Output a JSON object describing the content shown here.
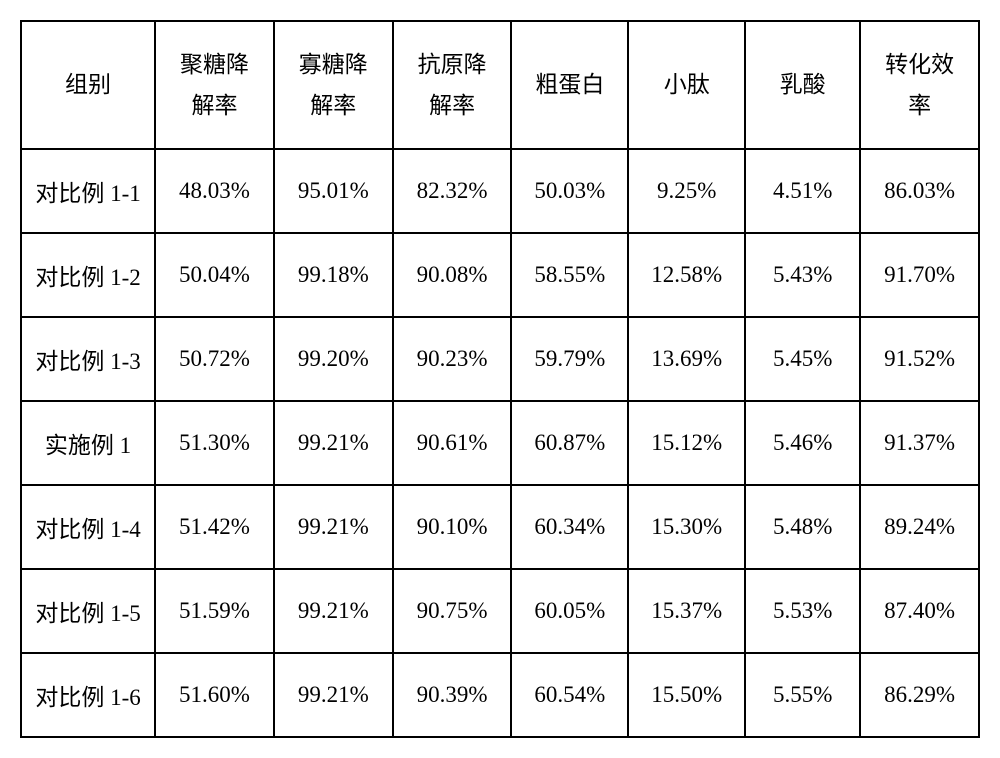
{
  "table": {
    "type": "table",
    "background_color": "#ffffff",
    "border_color": "#000000",
    "border_width": 2,
    "font_family": "SimSun",
    "header_fontsize": 23,
    "cell_fontsize": 23,
    "header_row_height": 128,
    "data_row_height": 84,
    "text_color": "#000000",
    "columns": [
      {
        "key": "group",
        "label": "组别",
        "width_pct": 14.0,
        "align": "center"
      },
      {
        "key": "poly",
        "label": "聚糖降解率",
        "width_pct": 12.4,
        "align": "center"
      },
      {
        "key": "oligo",
        "label": "寡糖降解率",
        "width_pct": 12.4,
        "align": "center"
      },
      {
        "key": "antigen",
        "label": "抗原降解率",
        "width_pct": 12.4,
        "align": "center"
      },
      {
        "key": "protein",
        "label": "粗蛋白",
        "width_pct": 12.2,
        "align": "center"
      },
      {
        "key": "peptide",
        "label": "小肽",
        "width_pct": 12.2,
        "align": "center"
      },
      {
        "key": "lactic",
        "label": "乳酸",
        "width_pct": 12.0,
        "align": "center"
      },
      {
        "key": "conv",
        "label": "转化效率",
        "width_pct": 12.4,
        "align": "center"
      }
    ],
    "header_labels": {
      "l0": "组别",
      "l1a": "聚糖降",
      "l1b": "解率",
      "l2a": "寡糖降",
      "l2b": "解率",
      "l3a": "抗原降",
      "l3b": "解率",
      "l4": "粗蛋白",
      "l5": "小肽",
      "l6": "乳酸",
      "l7a": "转化效",
      "l7b": "率"
    },
    "rows": [
      {
        "group": "对比例 1-1",
        "poly": "48.03%",
        "oligo": "95.01%",
        "antigen": "82.32%",
        "protein": "50.03%",
        "peptide": "9.25%",
        "lactic": "4.51%",
        "conv": "86.03%"
      },
      {
        "group": "对比例 1-2",
        "poly": "50.04%",
        "oligo": "99.18%",
        "antigen": "90.08%",
        "protein": "58.55%",
        "peptide": "12.58%",
        "lactic": "5.43%",
        "conv": "91.70%"
      },
      {
        "group": "对比例 1-3",
        "poly": "50.72%",
        "oligo": "99.20%",
        "antigen": "90.23%",
        "protein": "59.79%",
        "peptide": "13.69%",
        "lactic": "5.45%",
        "conv": "91.52%"
      },
      {
        "group": "实施例 1",
        "poly": "51.30%",
        "oligo": "99.21%",
        "antigen": "90.61%",
        "protein": "60.87%",
        "peptide": "15.12%",
        "lactic": "5.46%",
        "conv": "91.37%"
      },
      {
        "group": "对比例 1-4",
        "poly": "51.42%",
        "oligo": "99.21%",
        "antigen": "90.10%",
        "protein": "60.34%",
        "peptide": "15.30%",
        "lactic": "5.48%",
        "conv": "89.24%"
      },
      {
        "group": "对比例 1-5",
        "poly": "51.59%",
        "oligo": "99.21%",
        "antigen": "90.75%",
        "protein": "60.05%",
        "peptide": "15.37%",
        "lactic": "5.53%",
        "conv": "87.40%"
      },
      {
        "group": "对比例 1-6",
        "poly": "51.60%",
        "oligo": "99.21%",
        "antigen": "90.39%",
        "protein": "60.54%",
        "peptide": "15.50%",
        "lactic": "5.55%",
        "conv": "86.29%"
      }
    ]
  }
}
